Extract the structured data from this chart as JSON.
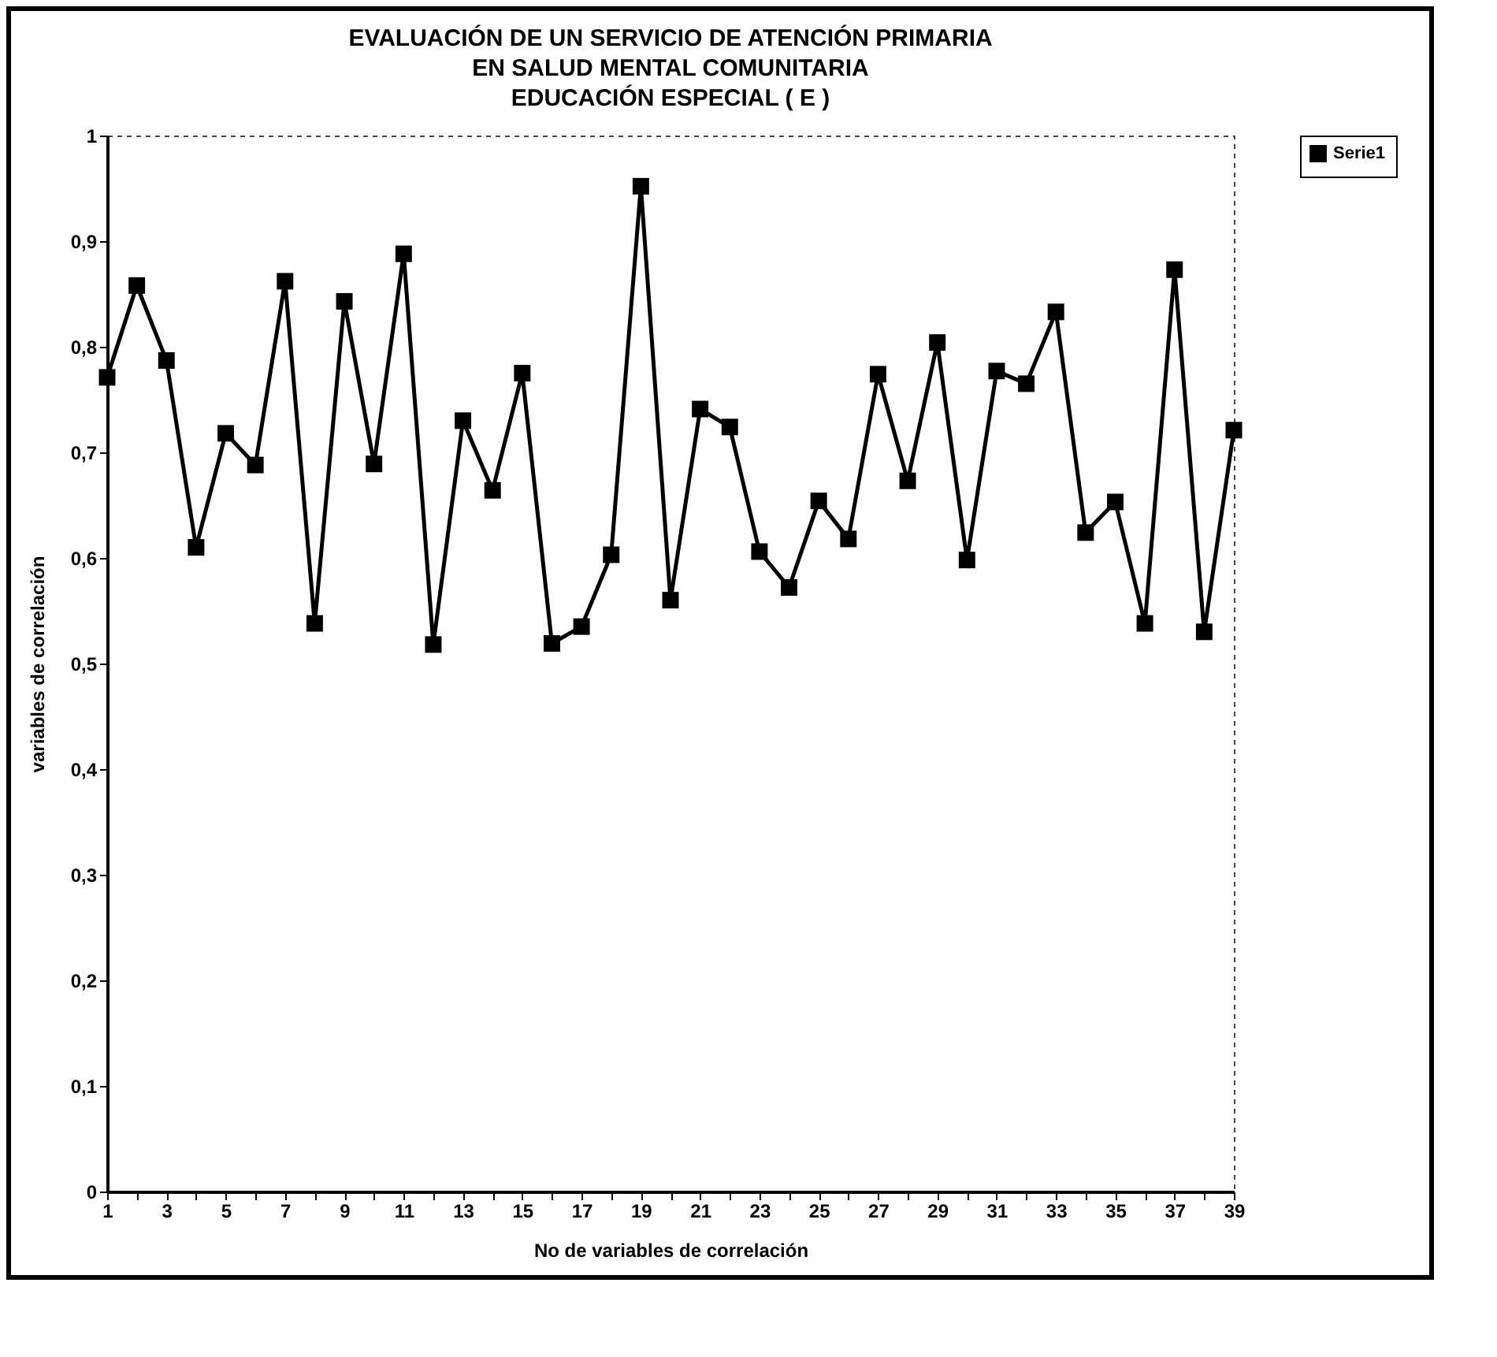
{
  "chart_data": {
    "type": "line",
    "title": "EVALUACIÓN DE UN SERVICIO DE ATENCIÓN PRIMARIA\nEN SALUD MENTAL COMUNITARIA\nEDUCACIÓN ESPECIAL ( E )",
    "xlabel": "No de variables de correlación",
    "ylabel": "variables de correlación",
    "x": [
      1,
      2,
      3,
      4,
      5,
      6,
      7,
      8,
      9,
      10,
      11,
      12,
      13,
      14,
      15,
      16,
      17,
      18,
      19,
      20,
      21,
      22,
      23,
      24,
      25,
      26,
      27,
      28,
      29,
      30,
      31,
      32,
      33,
      34,
      35,
      36,
      37,
      38,
      39
    ],
    "series": [
      {
        "name": "Serie1",
        "color": "#000000",
        "values": [
          0.771,
          0.858,
          0.787,
          0.61,
          0.718,
          0.688,
          0.862,
          0.538,
          0.843,
          0.689,
          0.888,
          0.518,
          0.73,
          0.664,
          0.775,
          0.519,
          0.535,
          0.603,
          0.952,
          0.56,
          0.741,
          0.724,
          0.606,
          0.572,
          0.654,
          0.618,
          0.774,
          0.673,
          0.804,
          0.598,
          0.777,
          0.765,
          0.833,
          0.624,
          0.653,
          0.538,
          0.873,
          0.53,
          0.721
        ]
      }
    ],
    "xlim": [
      1,
      39
    ],
    "xticks": [
      1,
      {
        "value": 2,
        "label": null
      },
      3,
      {
        "value": 4,
        "label": null
      },
      5,
      {
        "value": 6,
        "label": null
      },
      7,
      {
        "value": 8,
        "label": null
      },
      9,
      {
        "value": 10,
        "label": null
      },
      11,
      {
        "value": 12,
        "label": null
      },
      13,
      {
        "value": 14,
        "label": null
      },
      15,
      {
        "value": 16,
        "label": null
      },
      17,
      {
        "value": 18,
        "label": null
      },
      19,
      {
        "value": 20,
        "label": null
      },
      21,
      {
        "value": 22,
        "label": null
      },
      23,
      {
        "value": 24,
        "label": null
      },
      25,
      {
        "value": 26,
        "label": null
      },
      27,
      {
        "value": 28,
        "label": null
      },
      29,
      {
        "value": 30,
        "label": null
      },
      31,
      {
        "value": 32,
        "label": null
      },
      33,
      {
        "value": 34,
        "label": null
      },
      35,
      {
        "value": 36,
        "label": null
      },
      37,
      {
        "value": 38,
        "label": null
      },
      39
    ],
    "ylim": [
      0,
      1
    ],
    "yticks": [
      0,
      {
        "value": 0.1,
        "label": "0,1"
      },
      {
        "value": 0.2,
        "label": "0,2"
      },
      {
        "value": 0.3,
        "label": "0,3"
      },
      {
        "value": 0.4,
        "label": "0,4"
      },
      {
        "value": 0.5,
        "label": "0,5"
      },
      {
        "value": 0.6,
        "label": "0,6"
      },
      {
        "value": 0.7,
        "label": "0,7"
      },
      {
        "value": 0.8,
        "label": "0,8"
      },
      {
        "value": 0.9,
        "label": "0,9"
      },
      1
    ],
    "grid": false,
    "legend": "right",
    "marker": "square",
    "line_style": "solid"
  }
}
